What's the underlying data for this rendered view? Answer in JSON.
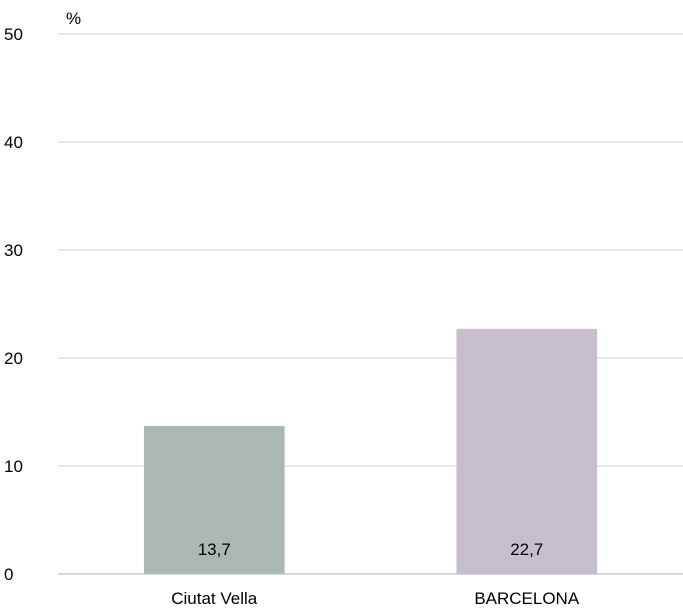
{
  "chart_data": {
    "type": "bar",
    "title": "",
    "xlabel": "",
    "ylabel": "%",
    "ylim": [
      0,
      50
    ],
    "yticks": [
      0,
      10,
      20,
      30,
      40,
      50
    ],
    "grid": true,
    "legend": "none",
    "categories": [
      "Ciutat Vella",
      "BARCELONA"
    ],
    "values": [
      13.7,
      22.7
    ],
    "value_labels": [
      "13,7",
      "22,7"
    ],
    "colors": [
      "#abb8b1",
      "#c6bfcb"
    ],
    "gridline_color": "#d9d9d9",
    "axis_color": "#bfbfbf"
  }
}
